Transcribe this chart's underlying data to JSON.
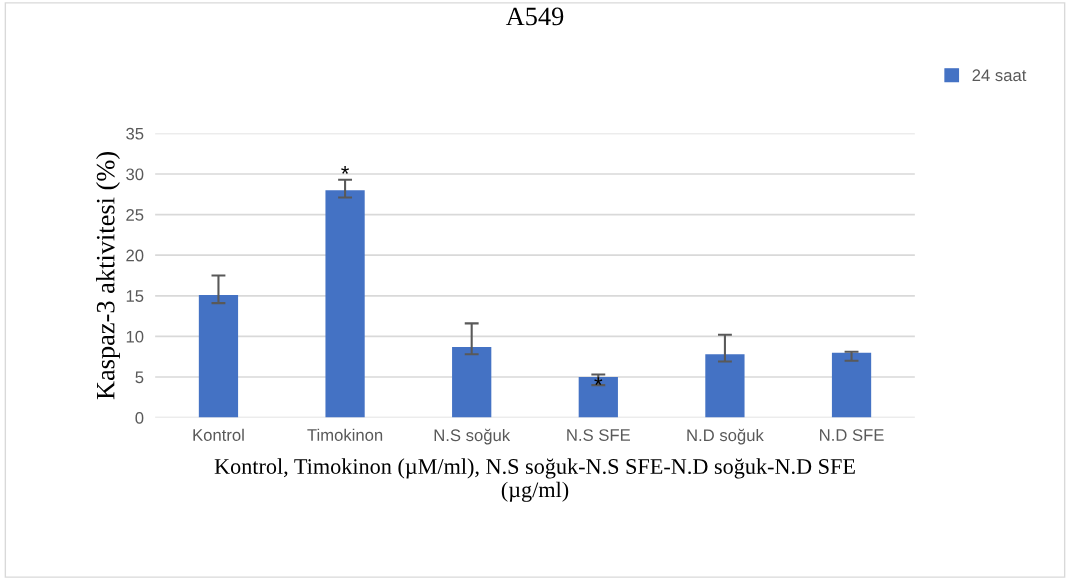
{
  "chart_data": {
    "type": "bar",
    "title": "A549",
    "xlabel": "Kontrol, Timokinon (µM/ml), N.S soğuk-N.S SFE-N.D soğuk-N.D SFE\n(µg/ml)",
    "ylabel": "Kaspaz-3 aktivitesi (%)",
    "categories": [
      "Kontrol",
      "Timokinon",
      "N.S soğuk",
      "N.S SFE",
      "N.D soğuk",
      "N.D SFE"
    ],
    "series": [
      {
        "name": "24 saat",
        "color": "#4472c4",
        "values": [
          15.1,
          28.0,
          8.7,
          5.0,
          7.8,
          8.0
        ],
        "errors": [
          [
            14.1,
            17.5
          ],
          [
            27.1,
            29.3
          ],
          [
            7.8,
            11.6
          ],
          [
            4.0,
            5.3
          ],
          [
            6.9,
            10.2
          ],
          [
            7.0,
            8.1
          ]
        ]
      }
    ],
    "annotations": [
      {
        "text": "*",
        "x": "Timokinon",
        "y": 29.8
      },
      {
        "text": "*",
        "x": "N.S SFE",
        "y": 3.8
      }
    ],
    "ylim": [
      0,
      35
    ],
    "yticks": [
      0,
      5,
      10,
      15,
      20,
      25,
      30,
      35
    ],
    "grid": "y",
    "legend": "top right"
  }
}
